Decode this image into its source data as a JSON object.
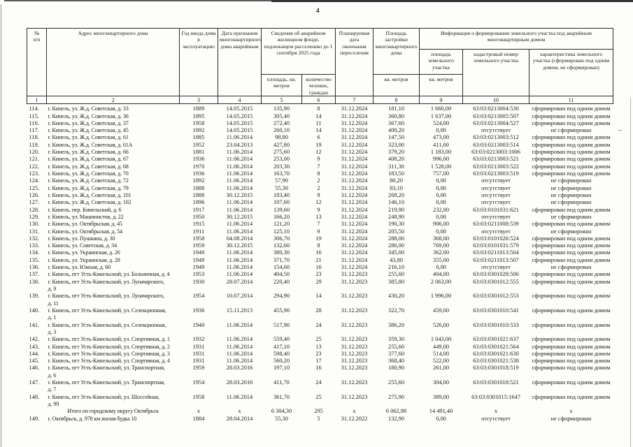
{
  "page": {
    "number": "4"
  },
  "table": {
    "headers": {
      "col1": "№\nп/п",
      "col2": "Адрес многоквартирного дома",
      "col3": "Год ввода дома в эксплуатацию",
      "col4": "Дата признания многоквартирного дома аварийным",
      "col56_group": "Сведения об аварийном жилищном фонде, подлежащем расселению до 1 сентября 2025 года",
      "col5": "площадь, кв. метров",
      "col6": "количество человек, граждан",
      "col7": "Планируемая дата окончания переселения",
      "col8": "Площадь застройки многоквартирного дома",
      "col8_unit": "кв. метров",
      "col9_11_group": "Информация о формировании земельного участка под аварийным многоквартирным домом",
      "col9": "площадь земельного участка",
      "col9_unit": "кв. метров",
      "col10": "кадастровый номер земельного участка",
      "col11": "характеристика земельного участка (сформирован под одним домом, не сформирован)"
    },
    "col_numbers": [
      "1",
      "2",
      "3",
      "4",
      "5",
      "6",
      "7",
      "8",
      "9",
      "10",
      "11"
    ],
    "rows": [
      {
        "cells": [
          "114.",
          "г. Кинель, ул. Ж.д. Советская, д. 33",
          "1889",
          "14.05.2015",
          "135,90",
          "8",
          "31.12.2024",
          "181,10",
          "1 660,00",
          "63:03:0213004:530",
          "сформирован под одним домом"
        ]
      },
      {
        "cells": [
          "115.",
          "г. Кинель, ул. Ж.д. Советская, д. 36",
          "1895",
          "14.05.2015",
          "305,40",
          "14",
          "31.12.2024",
          "360,80",
          "1 637,00",
          "63:03:0213005:507",
          "сформирован под одним домом"
        ]
      },
      {
        "cells": [
          "116.",
          "г. Кинель, ул. Ж.д. Советская, д. 37",
          "1958",
          "14.05.2015",
          "272,40",
          "11",
          "31.12.2024",
          "367,60",
          "524,00",
          "63:03:0213004:527",
          "сформирован под одним домом"
        ]
      },
      {
        "cells": [
          "117.",
          "г. Кинель, ул. Ж.д. Советская, д. 45",
          "1892",
          "14.05.2015",
          "260,10",
          "14",
          "31.12.2024",
          "400,20",
          "0,00",
          "отсутствует",
          "не сформирован"
        ]
      },
      {
        "cells": [
          "118.",
          "г. Кинель, ул. Ж.д. Советская, д. 61",
          "1885",
          "11.06.2014",
          "98,80",
          "6",
          "31.12.2024",
          "147,50",
          "473,00",
          "63:03:0213003:512",
          "сформирован под одним домом"
        ]
      },
      {
        "cells": [
          "119.",
          "г. Кинель, ул. Ж.д. Советская, д. 61А",
          "1952",
          "23.04.2013",
          "427,80",
          "19",
          "31.12.2024",
          "323,00",
          "411,00",
          "63:03:0213003:514",
          "сформирован под одним домом"
        ]
      },
      {
        "cells": [
          "120.",
          "г. Кинель, ул. Ж.д. Советская, д. 66",
          "1881",
          "11.06.2014",
          "275,60",
          "12",
          "31.12.2024",
          "379,20",
          "1 183,00",
          "63:03:0213003:1006",
          "сформирован под одним домом"
        ]
      },
      {
        "cells": [
          "121.",
          "г. Кинель, ул. Ж.д. Советская, д. 67",
          "1936",
          "11.06.2014",
          "253,00",
          "9",
          "31.12.2024",
          "408,20",
          "996,00",
          "63:03:0213003:521",
          "сформирован под одним домом"
        ]
      },
      {
        "cells": [
          "122.",
          "г. Кинель, ул. Ж.д. Советская, д. 68",
          "1970",
          "11.06.2014",
          "203,30",
          "7",
          "31.12.2024",
          "311,30",
          "1 528,00",
          "63:03:0213003:522",
          "сформирован под одним домом"
        ]
      },
      {
        "cells": [
          "123.",
          "г. Кинель, ул. Ж.д. Советская, д. 70",
          "1936",
          "11.06.2014",
          "163,70",
          "8",
          "31.12.2024",
          "183,50",
          "757,00",
          "63:03:0213003:519",
          "сформирован под одним домом"
        ]
      },
      {
        "cells": [
          "124.",
          "г. Кинель, ул. Ж.д. Советская, д. 72",
          "1892",
          "11.06.2014",
          "57,90",
          "2",
          "31.12.2024",
          "80,20",
          "0,00",
          "отсутствует",
          "не сформирован"
        ]
      },
      {
        "cells": [
          "125.",
          "г. Кинель, ул. Ж.д. Советская, д. 79",
          "1888",
          "11.06.2014",
          "55,30",
          "2",
          "31.12.2024",
          "83,10",
          "0,00",
          "отсутствует",
          "не сформирован"
        ]
      },
      {
        "cells": [
          "126.",
          "г. Кинель, ул. Ж.д. Советская, д. 101",
          "1888",
          "30.12.2015",
          "183,40",
          "9",
          "31.12.2024",
          "268,20",
          "0,00",
          "отсутствует",
          "не сформирован"
        ]
      },
      {
        "cells": [
          "127.",
          "г. Кинель, ул. Ж.д. Советская, д. 102",
          "1896",
          "11.06.2014",
          "107,60",
          "12",
          "31.12.2024",
          "146,10",
          "0,00",
          "отсутствует",
          "не сформирован"
        ]
      },
      {
        "cells": [
          "128.",
          "г. Кинель, пер. Кинельский, д. 6",
          "1917",
          "11.06.2014",
          "139,60",
          "9",
          "31.12.2024",
          "219,90",
          "232,00",
          "63:03:0101031:621",
          "сформирован под одним домом"
        ]
      },
      {
        "cells": [
          "129.",
          "г. Кинель, ул. Машинистов, д. 22",
          "1950",
          "30.12.2015",
          "166,20",
          "13",
          "31.12.2024",
          "248,90",
          "0,00",
          "отсутствует",
          "не сформирован"
        ]
      },
      {
        "cells": [
          "130.",
          "г. Кинель, ул. Октябрьская, д. 45",
          "1915",
          "11.06.2014",
          "121,20",
          "7",
          "31.12.2024",
          "190,30",
          "906,00",
          "63:03:0211008:539",
          "сформирован под одним домом"
        ]
      },
      {
        "cells": [
          "131.",
          "г. Кинель, ул. Октябрьская, д. 54",
          "1911",
          "11.06.2014",
          "125,10",
          "9",
          "31.12.2024",
          "205,50",
          "0,00",
          "отсутствует",
          "не сформирован"
        ]
      },
      {
        "cells": [
          "132.",
          "г. Кинель, ул. Пушкина, д. 30",
          "1958",
          "04.08.2014",
          "306,70",
          "19",
          "31.12.2024",
          "288,00",
          "368,00",
          "63:03:0101026:524",
          "сформирован под одним домом"
        ]
      },
      {
        "cells": [
          "133.",
          "г. Кинель, ул. Советская, д. 34",
          "1959",
          "30.12.2015",
          "132,60",
          "8",
          "31.12.2024",
          "286,00",
          "769,00",
          "63:03:0101031:579",
          "сформирован под одним домом"
        ]
      },
      {
        "cells": [
          "134.",
          "г. Кинель, ул. Украинская, д. 26",
          "1949",
          "11.06.2014",
          "380,30",
          "16",
          "31.12.2024",
          "345,00",
          "362,00",
          "63:03:0211013:504",
          "сформирован под одним домом"
        ]
      },
      {
        "cells": [
          "135.",
          "г. Кинель, ул. Украинская, д. 28",
          "1949",
          "11.06.2014",
          "371,70",
          "21",
          "31.12.2024",
          "43,80",
          "355,00",
          "63:03:0211013:507",
          "сформирован под одним домом"
        ]
      },
      {
        "cells": [
          "136.",
          "г. Кинель, ул. Южная, д. 60",
          "1949",
          "11.06.2014",
          "154,60",
          "16",
          "31.12.2024",
          "216,10",
          "0,00",
          "отсутствует",
          "не сформирован"
        ]
      },
      {
        "cells": [
          "137.",
          "г. Кинель, пгт Усть-Кинельский, ул. Больничная, д. 4",
          "1953",
          "11.06.2014",
          "404,50",
          "23",
          "31.12.2023",
          "255,60",
          "404,00",
          "63:03:0301028:506",
          "сформирован под одним домом"
        ]
      },
      {
        "cells": [
          "138.",
          "г. Кинель, пгт Усть-Кинельский, ул. Луначарского,\nд. 9",
          "1930",
          "28.07.2014",
          "220,40",
          "29",
          "31.12.2023",
          "385,80",
          "2 063,00",
          "63:03:0301012:555",
          "сформирован под одним домом"
        ]
      },
      {
        "cells": [
          "139.",
          "г. Кинель, пгт Усть-Кинельский, ул. Луначарского,\nд. 11",
          "1954",
          "10.07.2014",
          "294,90",
          "14",
          "31.12.2023",
          "430,20",
          "1 996,00",
          "63:03:0301012:553",
          "сформирован под одним домом"
        ]
      },
      {
        "cells": [
          "140.",
          "г. Кинель, пгт Усть-Кинельский, ул. Селекционная,\nд. 1",
          "1936",
          "15.11.2013",
          "455,90",
          "28",
          "31.12.2023",
          "322,70",
          "459,00",
          "63:03:0301010:541",
          "сформирован под одним домом"
        ]
      },
      {
        "cells": [
          "141.",
          "г. Кинель, пгт Усть-Кинельский, ул. Селекционная,\nд. 3",
          "1940",
          "11.06.2014",
          "517,90",
          "24",
          "31.12.2023",
          "386,20",
          "526,00",
          "63:03:0301010:533",
          "сформирован под одним домом"
        ]
      },
      {
        "cells": [
          "142.",
          "г. Кинель, пгт Усть-Кинельский, ул. Спортивная, д. 1",
          "1932",
          "11.06.2014",
          "559,40",
          "25",
          "31.12.2023",
          "359,30",
          "1 043,00",
          "63:03:0301021:637",
          "сформирован под одним домом"
        ]
      },
      {
        "cells": [
          "143.",
          "г. Кинель, пгт Усть-Кинельский, ул. Спортивная, д. 2",
          "1931",
          "11.06.2014",
          "417,10",
          "13",
          "31.12.2023",
          "255,60",
          "449,00",
          "63:03:0301021:564",
          "сформирован под одним домом"
        ]
      },
      {
        "cells": [
          "144.",
          "г. Кинель, пгт Усть-Кинельский, ул. Спортивная, д. 3",
          "1931",
          "11.06.2014",
          "598,40",
          "23",
          "31.12.2023",
          "377,60",
          "514,00",
          "63:03:0301021:630",
          "сформирован под одним домом"
        ]
      },
      {
        "cells": [
          "145.",
          "г. Кинель, пгт Усть-Кинельский, ул. Спортивная, д. 4",
          "1931",
          "11.06.2014",
          "560,20",
          "17",
          "31.12.2023",
          "368,40",
          "522,00",
          "63:03:0301021:538",
          "сформирован под одним домом"
        ]
      },
      {
        "cells": [
          "146.",
          "г. Кинель, пгт Усть-Кинельский, ул. Транспортная,\nд. 6",
          "1959",
          "28.03.2016",
          "197,10",
          "16",
          "31.12.2023",
          "180,90",
          "261,00",
          "63:03:0301018:519",
          "сформирован под одним домом"
        ]
      },
      {
        "cells": [
          "147.",
          "г. Кинель, пгт Усть-Кинельский, ул. Транспортная,\nд. 7",
          "1954",
          "28.03.2016",
          "411,70",
          "24",
          "31.12.2023",
          "255,60",
          "304,00",
          "63:03:0301018:521",
          "сформирован под одним домом"
        ]
      },
      {
        "cells": [
          "148.",
          "г. Кинель, пгт Усть-Кинельский, ул. Шоссейная,\nд. 99",
          "1958",
          "11.06.2014",
          "361,70",
          "25",
          "31.12.2023",
          "275,90",
          "389,00",
          "63:03:0301015:1647",
          "сформирован под одним домом"
        ]
      },
      {
        "total": true,
        "cells": [
          "",
          "Итого по городскому округу Октябрьск",
          "х",
          "х",
          "6 304,30",
          "295",
          "х",
          "6 062,98",
          "14 491,40",
          "х",
          "х"
        ]
      },
      {
        "cells": [
          "149.",
          "г. Октябрьск, д. 978 км жилая будка 10",
          "1884",
          "28.04.2014",
          "55,30",
          "5",
          "31.12.2022",
          "132,90",
          "0,00",
          "отсутствует",
          "не сформирован"
        ]
      }
    ]
  }
}
